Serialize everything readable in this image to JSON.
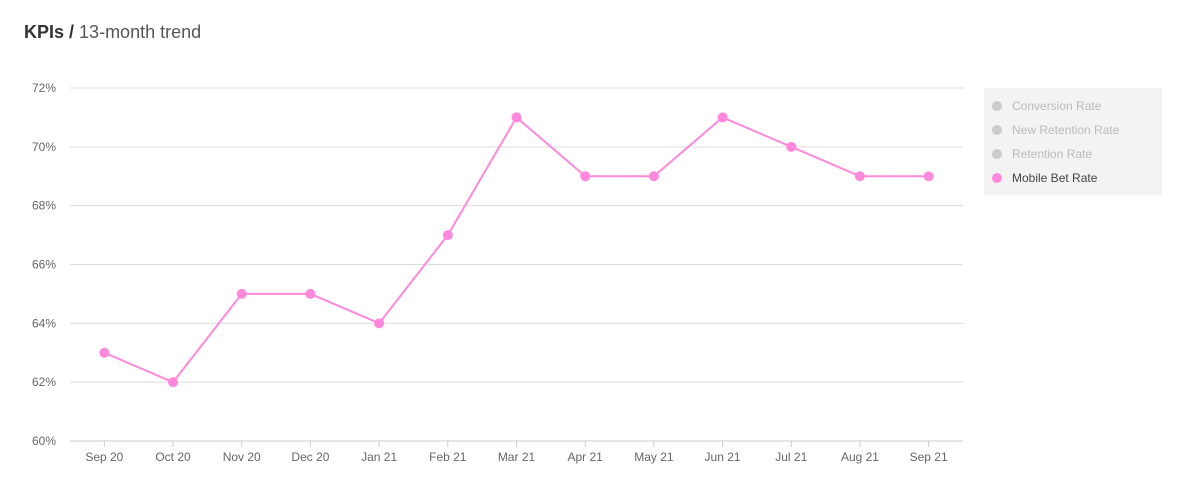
{
  "header": {
    "title_bold": "KPIs /",
    "title_rest": "13-month trend"
  },
  "chart_data": {
    "type": "line",
    "categories": [
      "Sep 20",
      "Oct 20",
      "Nov 20",
      "Dec 20",
      "Jan 21",
      "Feb 21",
      "Mar 21",
      "Apr 21",
      "May 21",
      "Jun 21",
      "Jul 21",
      "Aug 21",
      "Sep 21"
    ],
    "yticks": [
      "60%",
      "62%",
      "64%",
      "66%",
      "68%",
      "70%",
      "72%"
    ],
    "ylim": [
      60,
      72
    ],
    "grid": true,
    "legend_placement": "right",
    "series": [
      {
        "name": "Conversion Rate",
        "visible": false,
        "color": "#cccccc"
      },
      {
        "name": "New Retention Rate",
        "visible": false,
        "color": "#cccccc"
      },
      {
        "name": "Retention Rate",
        "visible": false,
        "color": "#cccccc"
      },
      {
        "name": "Mobile Bet Rate",
        "visible": true,
        "color": "#ff88dd",
        "values": [
          63,
          62,
          65,
          65,
          64,
          67,
          71,
          69,
          69,
          71,
          70,
          69,
          69
        ]
      }
    ]
  }
}
